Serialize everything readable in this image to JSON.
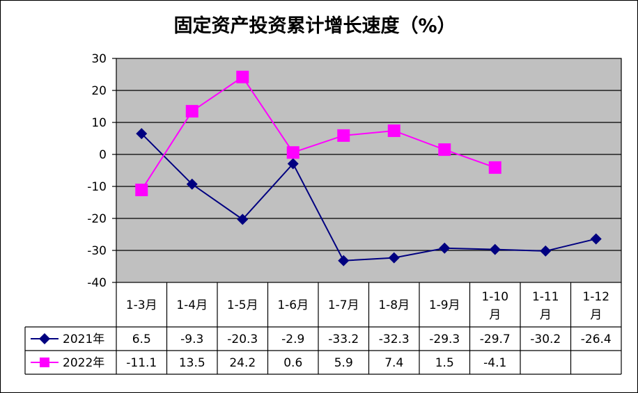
{
  "chart_data": {
    "type": "line",
    "title": "固定资产投资累计增长速度（%）",
    "categories": [
      "1-3月",
      "1-4月",
      "1-5月",
      "1-6月",
      "1-7月",
      "1-8月",
      "1-9月",
      "1-10月",
      "1-11月",
      "1-12月"
    ],
    "category_lines": [
      [
        "1-3月"
      ],
      [
        "1-4月"
      ],
      [
        "1-5月"
      ],
      [
        "1-6月"
      ],
      [
        "1-7月"
      ],
      [
        "1-8月"
      ],
      [
        "1-9月"
      ],
      [
        "1-10",
        "月"
      ],
      [
        "1-11",
        "月"
      ],
      [
        "1-12",
        "月"
      ]
    ],
    "ylim": [
      -40,
      30
    ],
    "yticks": [
      "30",
      "20",
      "10",
      "0",
      "-10",
      "-20",
      "-30",
      "-40"
    ],
    "grid": true,
    "plot_background": "#c0c0c0",
    "legend_placement": "data-table",
    "series": [
      {
        "name": "2021年",
        "color": "#000080",
        "marker": "diamond",
        "values": [
          6.5,
          -9.3,
          -20.3,
          -2.9,
          -33.2,
          -32.3,
          -29.3,
          -29.7,
          -30.2,
          -26.4
        ],
        "labels": [
          "6.5",
          "-9.3",
          "-20.3",
          "-2.9",
          "-33.2",
          "-32.3",
          "-29.3",
          "-29.7",
          "-30.2",
          "-26.4"
        ]
      },
      {
        "name": "2022年",
        "color": "#ff00ff",
        "marker": "square",
        "values": [
          -11.1,
          13.5,
          24.2,
          0.6,
          5.9,
          7.4,
          1.5,
          -4.1,
          null,
          null
        ],
        "labels": [
          "-11.1",
          "13.5",
          "24.2",
          "0.6",
          "5.9",
          "7.4",
          "1.5",
          "-4.1",
          "",
          ""
        ]
      }
    ]
  }
}
